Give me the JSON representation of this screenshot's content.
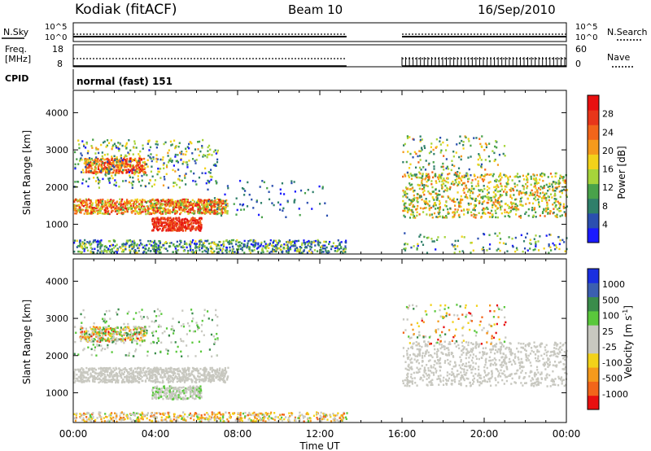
{
  "header": {
    "station": "Kodiak (fitACF)",
    "beam": "Beam 10",
    "date": "16/Sep/2010"
  },
  "side_labels": {
    "nsky": "N.Sky",
    "freq_line1": "Freq.",
    "freq_line2": "[MHz]",
    "cpid": "CPID",
    "nsearch": "N.Search",
    "nave": "Nave"
  },
  "cpid_text": "normal (fast) 151",
  "colors": {
    "power": [
      "#1a1aff",
      "#2b4fb0",
      "#2f7f6a",
      "#49a24a",
      "#a6d43b",
      "#f2d21a",
      "#f59a1c",
      "#f2651a",
      "#e8361a",
      "#e81010"
    ],
    "velocity": [
      "#e81010",
      "#f2651a",
      "#f59a1c",
      "#f2d21a",
      "#c8c8c0",
      "#c8c8c0",
      "#5ac83c",
      "#3a8c4a",
      "#3b5fb0",
      "#1a2fe0"
    ]
  },
  "chart_data": [
    {
      "type": "line",
      "name": "noise-panel",
      "left_ticks": [
        "10^5",
        "10^0"
      ],
      "right_ticks": [
        "10^5",
        "10^0"
      ],
      "series_labels": [
        "N.Sky",
        "N.Search"
      ]
    },
    {
      "type": "line",
      "name": "freq-nave-panel",
      "left_ticks": [
        "18",
        "8"
      ],
      "right_ticks": [
        "60",
        "0"
      ],
      "series_labels": [
        "Freq. [MHz]",
        "Nave"
      ]
    },
    {
      "type": "heatmap",
      "name": "power",
      "ylabel": "Slant Range [km]",
      "yticks": [
        "4000",
        "3000",
        "2000",
        "1000"
      ],
      "ylim": [
        200,
        4600
      ],
      "colorbar_label": "Power [dB]",
      "colorbar_ticks": [
        "28",
        "24",
        "20",
        "16",
        "12",
        "8",
        "4"
      ],
      "clim": [
        0,
        30
      ]
    },
    {
      "type": "heatmap",
      "name": "velocity",
      "ylabel": "Slant Range [km]",
      "yticks": [
        "4000",
        "3000",
        "2000",
        "1000"
      ],
      "ylim": [
        200,
        4600
      ],
      "colorbar_label": "Velocity [m s^-1]",
      "colorbar_ticks": [
        "1000",
        "500",
        "100",
        "25",
        "-25",
        "-100",
        "-500",
        "-1000"
      ]
    },
    {
      "type": "heatmap",
      "name": "time-axis",
      "xlabel": "Time UT",
      "xticks": [
        "00:00",
        "04:00",
        "08:00",
        "12:00",
        "16:00",
        "20:00",
        "00:00"
      ],
      "xlim": [
        0,
        24
      ],
      "data_gap_hours": [
        13.3,
        16.0
      ]
    }
  ]
}
